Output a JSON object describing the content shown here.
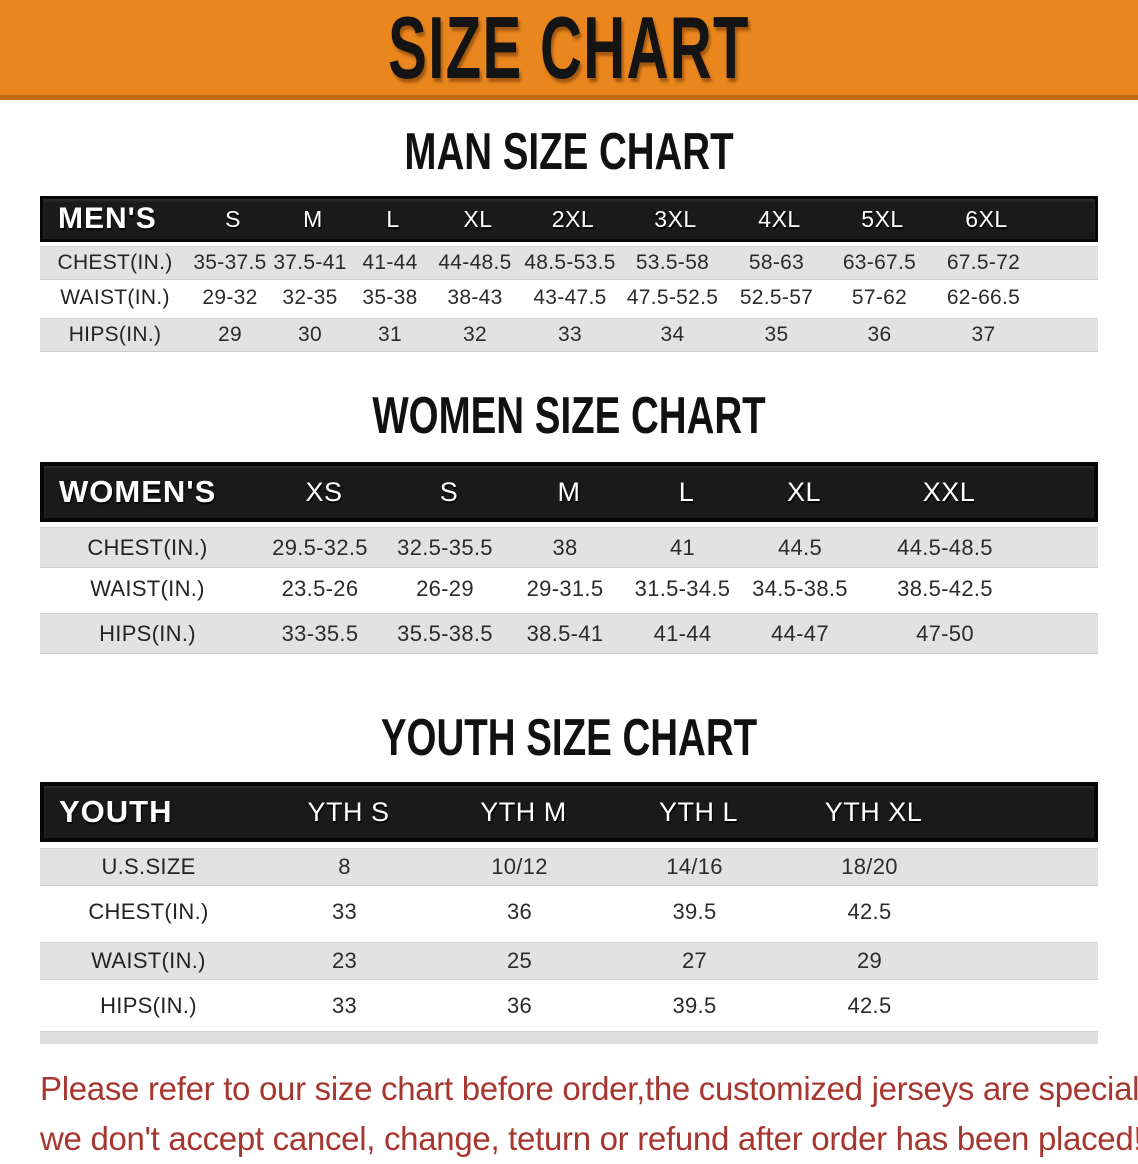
{
  "banner": {
    "title": "SIZE CHART"
  },
  "chart_data": [
    {
      "type": "table",
      "title": "MAN SIZE CHART",
      "columns": [
        "MEN'S",
        "S",
        "M",
        "L",
        "XL",
        "2XL",
        "3XL",
        "4XL",
        "5XL",
        "6XL"
      ],
      "rows": [
        [
          "CHEST(IN.)",
          "35-37.5",
          "37.5-41",
          "41-44",
          "44-48.5",
          "48.5-53.5",
          "53.5-58",
          "58-63",
          "63-67.5",
          "67.5-72"
        ],
        [
          "WAIST(IN.)",
          "29-32",
          "32-35",
          "35-38",
          "38-43",
          "43-47.5",
          "47.5-52.5",
          "52.5-57",
          "57-62",
          "62-66.5"
        ],
        [
          "HIPS(IN.)",
          "29",
          "30",
          "31",
          "32",
          "33",
          "34",
          "35",
          "36",
          "37"
        ]
      ]
    },
    {
      "type": "table",
      "title": "WOMEN SIZE CHART",
      "columns": [
        "WOMEN'S",
        "XS",
        "S",
        "M",
        "L",
        "XL",
        "XXL"
      ],
      "rows": [
        [
          "CHEST(IN.)",
          "29.5-32.5",
          "32.5-35.5",
          "38",
          "41",
          "44.5",
          "44.5-48.5"
        ],
        [
          "WAIST(IN.)",
          "23.5-26",
          "26-29",
          "29-31.5",
          "31.5-34.5",
          "34.5-38.5",
          "38.5-42.5"
        ],
        [
          "HIPS(IN.)",
          "33-35.5",
          "35.5-38.5",
          "38.5-41",
          "41-44",
          "44-47",
          "47-50"
        ]
      ]
    },
    {
      "type": "table",
      "title": "YOUTH SIZE CHART",
      "columns": [
        "YOUTH",
        "YTH S",
        "YTH M",
        "YTH L",
        "YTH XL"
      ],
      "rows": [
        [
          "U.S.SIZE",
          "8",
          "10/12",
          "14/16",
          "18/20"
        ],
        [
          "CHEST(IN.)",
          "33",
          "36",
          "39.5",
          "42.5"
        ],
        [
          "WAIST(IN.)",
          "23",
          "25",
          "27",
          "29"
        ],
        [
          "HIPS(IN.)",
          "33",
          "36",
          "39.5",
          "42.5"
        ]
      ]
    }
  ],
  "note": {
    "line1": "Please refer to our size chart before order,the customized jerseys are special products,",
    "line2": "we don't accept cancel, change, teturn or refund after order has been placed!"
  },
  "colors": {
    "banner_orange": "#EA861E",
    "banner_border": "#C06A12",
    "header_black": "#1A1A1A",
    "row_gray": "#E3E2E2",
    "row_white": "#FFFFFF",
    "note_red": "#A7362F",
    "cell_text": "#2B2B2B"
  }
}
